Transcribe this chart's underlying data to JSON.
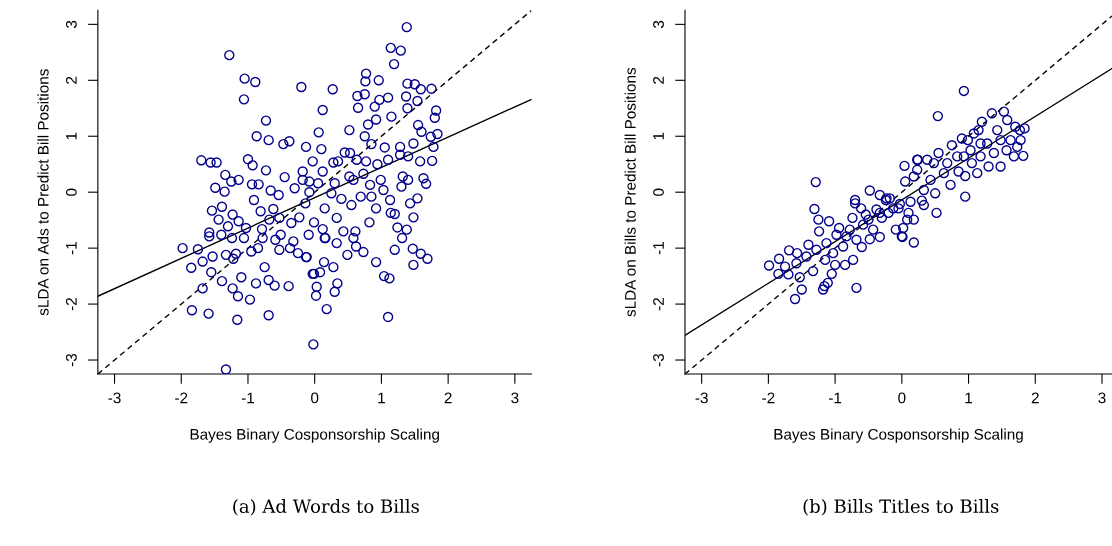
{
  "chart_data": [
    {
      "type": "scatter",
      "xlabel": "Bayes Binary Cosponsorship Scaling",
      "ylabel": "sLDA on Ads to Predict Bill Positions",
      "annotations": [
        "(a) Ad Words to Bills"
      ],
      "xlim": [
        -3.25,
        3.25
      ],
      "ylim": [
        -3.25,
        3.25
      ],
      "xticks": [
        -3,
        -2,
        -1,
        0,
        1,
        2,
        3
      ],
      "yticks": [
        -3,
        -2,
        -1,
        0,
        1,
        2,
        3
      ],
      "grid": false,
      "legend": false,
      "series": [
        {
          "marker": "circle",
          "color": "#00008b",
          "x": [
            -1.28,
            -1.05,
            -0.89,
            -1.06,
            -0.2,
            -0.73,
            -0.87,
            -0.69,
            -1.7,
            -1.56,
            -1.47,
            -1.34,
            -0.47,
            -0.38,
            -0.13,
            0.06,
            0.12,
            -1.0,
            -0.93,
            -0.73,
            -1.49,
            -1.35,
            -1.25,
            -1.14,
            -0.94,
            -0.84,
            -0.66,
            -0.54,
            -0.45,
            -0.3,
            -0.18,
            -1.54,
            -1.39,
            -1.23,
            -0.91,
            -0.81,
            -0.62,
            -1.44,
            -1.3,
            -1.14,
            -1.03,
            -0.79,
            -0.68,
            -0.53,
            -0.35,
            -0.23,
            -0.01,
            -1.98,
            -1.75,
            -1.58,
            -1.58,
            -1.4,
            -1.24,
            -1.06,
            -0.78,
            -0.59,
            -0.51,
            -0.32,
            -0.09,
            0.16,
            -1.85,
            -1.68,
            -1.53,
            -1.33,
            -1.18,
            -1.22,
            -0.95,
            -0.85,
            -0.53,
            -0.37,
            -0.25,
            -0.13,
            0.14,
            -1.55,
            -1.39,
            -1.23,
            -1.1,
            -0.88,
            -0.75,
            -0.69,
            -0.6,
            -0.39,
            -0.01,
            0.08,
            0.03,
            0.02,
            -1.68,
            -1.15,
            -0.97,
            -1.84,
            -1.59,
            -1.16,
            -0.69,
            0.18,
            -0.02,
            -1.33,
            1.38,
            1.14,
            1.29,
            1.19,
            0.77,
            0.76,
            0.96,
            0.27,
            0.64,
            0.75,
            0.65,
            1.39,
            1.5,
            1.59,
            1.75,
            0.9,
            0.97,
            1.1,
            1.37,
            1.54,
            1.82,
            1.8,
            0.52,
            0.8,
            0.92,
            1.15,
            1.39,
            1.55,
            1.6,
            1.84,
            1.74,
            0.1,
            0.45,
            0.75,
            0.85,
            1.05,
            1.28,
            1.48,
            1.78,
            -0.03,
            0.28,
            0.35,
            0.53,
            0.63,
            0.77,
            0.94,
            1.1,
            1.28,
            1.4,
            1.58,
            1.76,
            -0.18,
            0.12,
            -0.08,
            0.05,
            0.3,
            0.52,
            0.58,
            0.73,
            0.83,
            0.99,
            1.32,
            1.4,
            1.63,
            1.67,
            -0.08,
            0.25,
            0.4,
            0.55,
            0.69,
            0.85,
            1.03,
            1.13,
            1.3,
            1.43,
            1.54,
            -0.14,
            0.15,
            0.33,
            0.92,
            1.14,
            1.2,
            0.12,
            0.43,
            0.61,
            0.82,
            1.48,
            1.24,
            1.38,
            0.15,
            0.33,
            0.58,
            1.31,
            -0.12,
            0.49,
            0.62,
            0.73,
            0.92,
            1.2,
            1.47,
            1.59,
            1.69,
            1.48,
            0.28,
            -0.03,
            1.04,
            1.12,
            0.34,
            0.3,
            1.1
          ],
          "values": [
            2.45,
            2.03,
            1.97,
            1.66,
            1.88,
            1.28,
            1.0,
            0.93,
            0.57,
            0.53,
            0.53,
            0.31,
            0.86,
            0.91,
            0.81,
            1.07,
            1.47,
            0.59,
            0.48,
            0.39,
            0.08,
            0.01,
            0.19,
            0.22,
            0.14,
            0.14,
            0.03,
            -0.05,
            0.27,
            0.07,
            0.22,
            -0.33,
            -0.26,
            -0.4,
            -0.14,
            -0.34,
            -0.3,
            -0.49,
            -0.61,
            -0.52,
            -0.64,
            -0.66,
            -0.49,
            -0.46,
            -0.55,
            -0.45,
            -0.54,
            -1.0,
            -1.02,
            -0.79,
            -0.72,
            -0.76,
            -0.82,
            -0.82,
            -0.82,
            -0.85,
            -0.76,
            -0.88,
            -0.76,
            -0.82,
            -1.35,
            -1.24,
            -1.15,
            -1.12,
            -1.1,
            -1.19,
            -1.06,
            -1.0,
            -1.03,
            -1.0,
            -1.09,
            -1.16,
            -1.25,
            -1.43,
            -1.59,
            -1.72,
            -1.52,
            -1.63,
            -1.34,
            -1.57,
            -1.67,
            -1.68,
            -1.46,
            -1.43,
            -1.69,
            -1.85,
            -1.72,
            -1.86,
            -1.92,
            -2.11,
            -2.17,
            -2.28,
            -2.2,
            -2.09,
            -2.72,
            -3.17,
            2.95,
            2.58,
            2.53,
            2.29,
            2.12,
            1.98,
            2.0,
            1.84,
            1.72,
            1.75,
            1.51,
            1.94,
            1.93,
            1.84,
            1.85,
            1.53,
            1.65,
            1.69,
            1.71,
            1.63,
            1.46,
            1.33,
            1.11,
            1.21,
            1.3,
            1.35,
            1.5,
            1.2,
            1.08,
            1.04,
            0.99,
            0.77,
            0.71,
            1.0,
            0.86,
            0.8,
            0.81,
            0.87,
            0.81,
            0.55,
            0.53,
            0.55,
            0.7,
            0.58,
            0.55,
            0.5,
            0.58,
            0.67,
            0.64,
            0.55,
            0.56,
            0.37,
            0.37,
            0.19,
            0.16,
            0.16,
            0.28,
            0.22,
            0.33,
            0.13,
            0.22,
            0.28,
            0.22,
            0.25,
            0.15,
            0.0,
            -0.02,
            -0.12,
            -0.23,
            -0.08,
            -0.08,
            0.04,
            -0.14,
            0.1,
            -0.2,
            -0.11,
            -0.2,
            -0.29,
            -0.46,
            -0.29,
            -0.37,
            -0.39,
            -0.66,
            -0.7,
            -0.7,
            -0.54,
            -0.45,
            -0.63,
            -0.67,
            -0.82,
            -0.91,
            -0.82,
            -0.82,
            -1.16,
            -1.12,
            -0.97,
            -1.07,
            -1.25,
            -1.03,
            -1.01,
            -1.1,
            -1.19,
            -1.3,
            -1.34,
            -1.46,
            -1.5,
            -1.54,
            -1.63,
            -1.78,
            -2.23
          ]
        },
        {
          "type": "line",
          "color": "#000000",
          "line_style": "solid",
          "marker": "none",
          "x": [
            -3.25,
            3.25
          ],
          "values": [
            -1.86,
            1.66
          ]
        },
        {
          "type": "line",
          "color": "#000000",
          "line_style": "dashed",
          "marker": "none",
          "x": [
            -3.25,
            3.25
          ],
          "values": [
            -3.25,
            3.25
          ]
        }
      ]
    },
    {
      "type": "scatter",
      "xlabel": "Bayes Binary Cosponsorship Scaling",
      "ylabel": "sLDA on Bills to Predict Bill Positions",
      "annotations": [
        "(b) Bills Titles to Bills"
      ],
      "xlim": [
        -3.25,
        3.15
      ],
      "ylim": [
        -3.25,
        3.25
      ],
      "xticks": [
        -3,
        -2,
        -1,
        0,
        1,
        2,
        3
      ],
      "yticks": [
        -3,
        -2,
        -1,
        0,
        1,
        2,
        3
      ],
      "grid": false,
      "legend": false,
      "series": [
        {
          "marker": "circle",
          "color": "#00008b",
          "x": [
            -1.29,
            -1.31,
            -1.99,
            -1.84,
            -1.85,
            -1.7,
            -1.69,
            -1.75,
            -1.58,
            -1.57,
            -1.6,
            -1.5,
            -1.53,
            -1.43,
            -1.4,
            -1.33,
            -1.28,
            -1.25,
            -1.24,
            -1.18,
            -1.16,
            -1.11,
            -1.15,
            -1.13,
            -1.09,
            -1.05,
            -1.03,
            -1.0,
            -0.98,
            -0.94,
            -0.88,
            -0.85,
            -0.83,
            -0.78,
            -0.74,
            -0.73,
            -0.68,
            -0.7,
            -0.7,
            -0.68,
            -0.61,
            -0.6,
            -0.58,
            -0.54,
            -0.5,
            -0.48,
            -0.48,
            -0.43,
            -0.38,
            -0.33,
            -0.33,
            -0.3,
            -0.24,
            -0.2,
            -0.18,
            -0.09,
            -0.05,
            0.0,
            0.02,
            0.04,
            0.05,
            0.08,
            0.13,
            0.18,
            0.18,
            0.23,
            0.93,
            0.54,
            -0.33,
            0.01,
            -0.23,
            -0.13,
            -0.03,
            0.1,
            0.18,
            0.24,
            0.3,
            0.33,
            0.52,
            0.95,
            0.95,
            0.23,
            0.33,
            0.43,
            0.48,
            0.5,
            0.55,
            0.63,
            0.68,
            0.73,
            0.75,
            0.83,
            0.85,
            0.9,
            0.99,
            1.03,
            1.05,
            1.13,
            1.18,
            1.15,
            1.2,
            1.28,
            1.3,
            1.35,
            1.38,
            1.43,
            1.48,
            1.53,
            1.57,
            1.58,
            1.63,
            1.68,
            1.7,
            1.73,
            1.78,
            1.82,
            1.84,
            1.77,
            1.48,
            1.18,
            1.08,
            0.93,
            0.38
          ],
          "values": [
            0.18,
            -0.3,
            -1.31,
            -1.19,
            -1.46,
            -1.47,
            -1.04,
            -1.33,
            -1.27,
            -1.09,
            -1.91,
            -1.74,
            -1.52,
            -1.15,
            -0.94,
            -1.41,
            -1.03,
            -0.49,
            -0.7,
            -1.74,
            -1.68,
            -1.62,
            -1.21,
            -0.91,
            -0.52,
            -1.46,
            -1.09,
            -1.3,
            -0.76,
            -0.64,
            -0.97,
            -1.3,
            -0.79,
            -0.67,
            -0.46,
            -1.21,
            -1.71,
            -0.14,
            -0.2,
            -0.85,
            -0.29,
            -0.98,
            -0.58,
            -0.4,
            -0.49,
            -0.84,
            0.03,
            -0.67,
            -0.31,
            -0.8,
            -0.05,
            -0.46,
            -0.14,
            -0.37,
            -0.11,
            -0.67,
            -0.29,
            -0.79,
            -0.64,
            0.47,
            0.19,
            -0.49,
            -0.17,
            -0.9,
            0.28,
            0.58,
            1.81,
            1.36,
            -0.37,
            -0.8,
            -0.11,
            -0.29,
            -0.21,
            -0.37,
            -0.49,
            0.58,
            -0.15,
            -0.23,
            -0.37,
            -0.08,
            0.29,
            0.4,
            0.04,
            0.22,
            0.52,
            -0.02,
            0.7,
            0.34,
            0.52,
            0.13,
            0.84,
            0.64,
            0.37,
            0.96,
            0.93,
            0.75,
            0.52,
            0.34,
            0.64,
            1.11,
            1.26,
            0.87,
            0.46,
            1.41,
            0.7,
            1.11,
            0.46,
            1.44,
            0.75,
            1.29,
            0.93,
            0.64,
            1.17,
            0.81,
            0.93,
            0.65,
            1.14,
            1.11,
            0.93,
            0.87,
            1.05,
            0.64,
            0.58
          ]
        },
        {
          "type": "line",
          "color": "#000000",
          "line_style": "solid",
          "marker": "none",
          "x": [
            -3.25,
            3.15
          ],
          "values": [
            -2.56,
            2.21
          ]
        },
        {
          "type": "line",
          "color": "#000000",
          "line_style": "dashed",
          "marker": "none",
          "x": [
            -3.25,
            3.15
          ],
          "values": [
            -3.25,
            3.15
          ]
        }
      ]
    }
  ]
}
